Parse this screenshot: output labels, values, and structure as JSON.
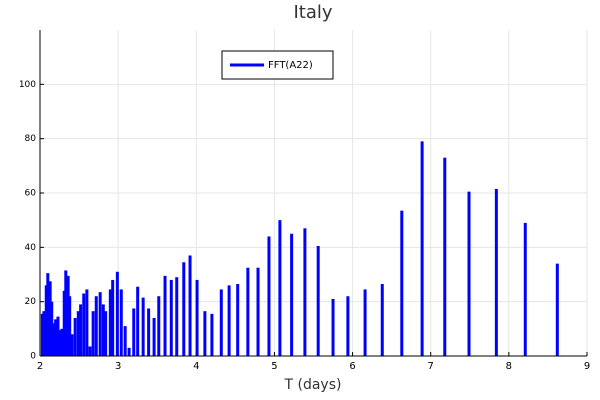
{
  "chart_data": {
    "type": "bar",
    "title": "Italy",
    "x_label": "T (days)",
    "series": [
      {
        "name": "FFT(A22)",
        "color": "#0000ff",
        "x": [
          2.03,
          2.05,
          2.08,
          2.1,
          2.13,
          2.15,
          2.18,
          2.2,
          2.23,
          2.26,
          2.28,
          2.31,
          2.33,
          2.36,
          2.38,
          2.41,
          2.45,
          2.49,
          2.52,
          2.56,
          2.6,
          2.64,
          2.68,
          2.72,
          2.77,
          2.81,
          2.84,
          2.9,
          2.93,
          2.99,
          3.04,
          3.09,
          3.14,
          3.2,
          3.25,
          3.32,
          3.39,
          3.46,
          3.52,
          3.6,
          3.68,
          3.75,
          3.84,
          3.92,
          4.01,
          4.11,
          4.2,
          4.32,
          4.42,
          4.53,
          4.66,
          4.79,
          4.93,
          5.07,
          5.22,
          5.39,
          5.56,
          5.75,
          5.94,
          6.16,
          6.38,
          6.63,
          6.89,
          7.18,
          7.49,
          7.84,
          8.21,
          8.62
        ],
        "values": [
          15.5,
          16.5,
          26,
          30.5,
          27.5,
          20,
          12,
          13.5,
          14.5,
          9.5,
          10,
          24,
          31.5,
          29.5,
          22,
          8,
          14,
          16.5,
          19,
          23,
          24.5,
          3.5,
          16.5,
          22,
          23.5,
          19,
          16.5,
          24.5,
          28,
          31,
          24.5,
          11,
          3,
          17.5,
          25.5,
          21.5,
          17.5,
          14,
          22,
          29.5,
          28,
          29,
          34.5,
          37,
          28,
          16.5,
          15.5,
          24.5,
          26,
          26.5,
          32.5,
          32.5,
          44,
          50,
          45,
          47,
          40.5,
          21,
          22,
          24.5,
          26.5,
          53.5,
          79,
          73,
          60.5,
          61.5,
          49,
          34
        ]
      }
    ],
    "xlim": [
      2,
      9
    ],
    "xticks": [
      2,
      3,
      4,
      5,
      6,
      7,
      8,
      9
    ],
    "ylim": [
      0,
      120
    ],
    "yticks": [
      0,
      20,
      40,
      60,
      80,
      100
    ],
    "grid": true
  }
}
